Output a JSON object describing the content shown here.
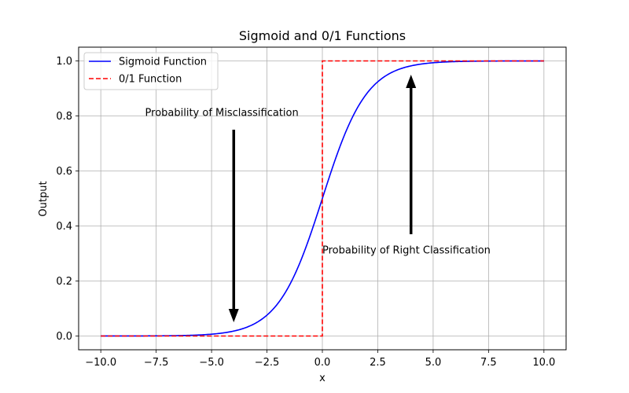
{
  "chart_data": {
    "type": "line",
    "title": "Sigmoid and 0/1 Functions",
    "xlabel": "x",
    "ylabel": "Output",
    "xlim": [
      -11,
      11
    ],
    "ylim": [
      -0.05,
      1.05
    ],
    "grid": true,
    "legend_position": "top-left",
    "x_ticks": [
      -10,
      -7.5,
      -5,
      -2.5,
      0,
      2.5,
      5,
      7.5,
      10
    ],
    "x_tick_labels": [
      "−10.0",
      "−7.5",
      "−5.0",
      "−2.5",
      "0.0",
      "2.5",
      "5.0",
      "7.5",
      "10.0"
    ],
    "y_ticks": [
      0,
      0.2,
      0.4,
      0.6,
      0.8,
      1.0
    ],
    "y_tick_labels": [
      "0.0",
      "0.2",
      "0.4",
      "0.6",
      "0.8",
      "1.0"
    ],
    "series": [
      {
        "name": "Sigmoid Function",
        "color": "#0000ff",
        "style": "solid",
        "x": [
          -10,
          -9,
          -8,
          -7,
          -6,
          -5,
          -4.5,
          -4,
          -3.5,
          -3,
          -2.5,
          -2,
          -1.5,
          -1,
          -0.5,
          0,
          0.5,
          1,
          1.5,
          2,
          2.5,
          3,
          3.5,
          4,
          4.5,
          5,
          6,
          7,
          8,
          9,
          10
        ],
        "y": [
          4.54e-05,
          0.0001234,
          0.0003354,
          0.000911,
          0.002473,
          0.006693,
          0.01099,
          0.01799,
          0.02931,
          0.04743,
          0.07586,
          0.1192,
          0.1824,
          0.2689,
          0.3775,
          0.5,
          0.6225,
          0.7311,
          0.8176,
          0.8808,
          0.9241,
          0.9526,
          0.9707,
          0.982,
          0.989,
          0.9933,
          0.9975,
          0.9991,
          0.9997,
          0.9999,
          1.0
        ]
      },
      {
        "name": "0/1 Function",
        "color": "#ff0000",
        "style": "dashed",
        "x": [
          -10,
          0,
          0,
          10
        ],
        "y": [
          0,
          0,
          1,
          1
        ]
      }
    ],
    "annotations": [
      {
        "text": "Probability of Misclassification",
        "text_x": -8,
        "text_y": 0.8,
        "arrow_from": [
          -4,
          0.75
        ],
        "arrow_to": [
          -4,
          0.05
        ]
      },
      {
        "text": "Probability of Right Classification",
        "text_x": 0,
        "text_y": 0.3,
        "arrow_from": [
          4,
          0.37
        ],
        "arrow_to": [
          4,
          0.95
        ]
      }
    ]
  }
}
